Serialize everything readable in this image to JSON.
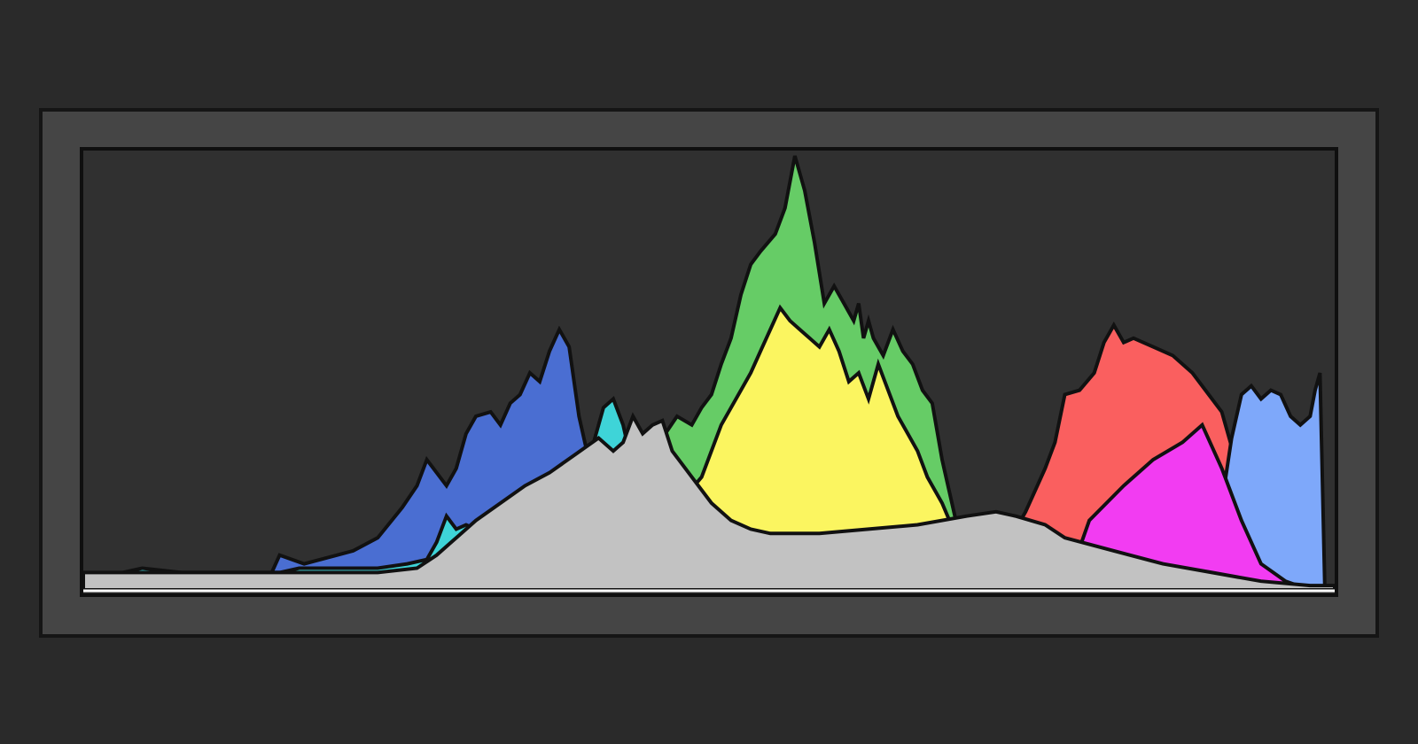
{
  "histogram": {
    "title": "",
    "colors": {
      "page_background": "#2a2a2a",
      "panel_background": "#454545",
      "plot_background": "#303030",
      "outline": "#111111"
    }
  },
  "chart_data": {
    "type": "area",
    "title": "",
    "xlabel": "",
    "ylabel": "",
    "xlim": [
      0,
      255
    ],
    "ylim": [
      0,
      100
    ],
    "grid": false,
    "legend": "none",
    "series": [
      {
        "key": "red",
        "color": "#fa5f5f",
        "x": [
          0,
          175,
          182,
          188,
          192,
          196,
          198,
          200,
          203,
          206,
          208,
          210,
          212,
          214,
          216,
          218,
          222,
          226,
          232,
          236,
          240,
          245,
          255
        ],
        "values": [
          0,
          0,
          4,
          10,
          18,
          28,
          34,
          45,
          46,
          50,
          57,
          61,
          57,
          58,
          57,
          56,
          54,
          50,
          41,
          25,
          10,
          2,
          0
        ]
      },
      {
        "key": "green",
        "color": "#66cc66",
        "x": [
          0,
          105,
          110,
          114,
          116,
          118,
          121,
          124,
          126,
          128,
          130,
          132,
          134,
          136,
          138,
          141,
          143,
          145,
          147,
          149,
          151,
          153,
          155,
          157,
          158,
          159,
          160,
          161,
          163,
          165,
          167,
          169,
          171,
          173,
          175,
          177,
          179,
          181,
          183,
          186,
          190,
          195,
          200
        ],
        "values": [
          0,
          0,
          8,
          18,
          25,
          35,
          40,
          38,
          42,
          45,
          52,
          58,
          68,
          75,
          78,
          82,
          88,
          100,
          92,
          80,
          66,
          70,
          66,
          62,
          66,
          58,
          62,
          58,
          54,
          60,
          55,
          52,
          46,
          43,
          30,
          20,
          10,
          5,
          3,
          1,
          0,
          0,
          0
        ]
      },
      {
        "key": "blue",
        "color": "#4a6ed2",
        "x": [
          0,
          30,
          35,
          38,
          40,
          45,
          55,
          60,
          65,
          68,
          70,
          72,
          74,
          76,
          78,
          80,
          83,
          85,
          87,
          89,
          91,
          93,
          95,
          97,
          99,
          101,
          103,
          105,
          107,
          109,
          111,
          113,
          114,
          116,
          118,
          120
        ],
        "values": [
          0,
          0,
          1,
          3,
          8,
          6,
          9,
          12,
          19,
          24,
          30,
          27,
          24,
          28,
          36,
          40,
          41,
          38,
          43,
          45,
          50,
          48,
          55,
          60,
          56,
          40,
          30,
          22,
          14,
          8,
          4,
          2,
          1,
          0,
          0,
          0
        ]
      },
      {
        "key": "light_blue",
        "color": "#7ea8fa",
        "x": [
          0,
          200,
          226,
          228,
          230,
          232,
          234,
          236,
          238,
          240,
          242,
          244,
          246,
          248,
          250,
          251,
          252,
          253,
          255
        ],
        "values": [
          0,
          0,
          0,
          3,
          10,
          20,
          35,
          45,
          47,
          44,
          46,
          45,
          40,
          38,
          40,
          46,
          50,
          0,
          0
        ]
      },
      {
        "key": "magenta",
        "color": "#f23cf2",
        "x": [
          0,
          72,
          74,
          76,
          78,
          80,
          82,
          84,
          90,
          100,
          101,
          102,
          104,
          106,
          108,
          110,
          112,
          200,
          205,
          212,
          218,
          224,
          228,
          232,
          236,
          240,
          245,
          250,
          255
        ],
        "values": [
          0,
          0,
          6,
          8,
          0,
          0,
          0,
          0,
          0,
          16,
          10,
          6,
          0,
          0,
          0,
          0,
          0,
          0,
          16,
          24,
          30,
          34,
          38,
          28,
          16,
          6,
          2,
          0,
          0
        ]
      },
      {
        "key": "cyan",
        "color": "#3ed4d8",
        "x": [
          0,
          2,
          8,
          12,
          20,
          34,
          40,
          44,
          48,
          52,
          56,
          60,
          66,
          70,
          72,
          74,
          76,
          78,
          80,
          82,
          84,
          86,
          88,
          90,
          92,
          94,
          96,
          98,
          100,
          102,
          104,
          106,
          108,
          110,
          112,
          114,
          116,
          118,
          120,
          122,
          124,
          126,
          128,
          132
        ],
        "values": [
          0,
          2,
          4,
          5,
          4,
          4,
          4,
          5,
          5,
          5,
          5,
          5,
          6,
          7,
          11,
          17,
          14,
          15,
          14,
          16,
          13,
          14,
          15,
          18,
          16,
          13,
          17,
          22,
          26,
          28,
          34,
          42,
          44,
          38,
          28,
          22,
          16,
          12,
          10,
          8,
          5,
          3,
          1,
          0
        ]
      },
      {
        "key": "yellow",
        "color": "#fbf560",
        "x": [
          0,
          115,
          120,
          126,
          130,
          134,
          136,
          138,
          140,
          142,
          144,
          146,
          148,
          150,
          152,
          154,
          156,
          158,
          160,
          162,
          164,
          166,
          168,
          170,
          172,
          175,
          178,
          180,
          185,
          190,
          200
        ],
        "values": [
          0,
          0,
          18,
          26,
          38,
          46,
          50,
          55,
          60,
          65,
          62,
          60,
          58,
          56,
          60,
          55,
          48,
          50,
          44,
          52,
          46,
          40,
          36,
          32,
          26,
          20,
          12,
          6,
          2,
          0,
          0
        ]
      },
      {
        "key": "gray",
        "color": "#c2c2c2",
        "x": [
          0,
          10,
          20,
          30,
          40,
          50,
          60,
          68,
          72,
          76,
          80,
          85,
          90,
          95,
          100,
          105,
          108,
          110,
          112,
          114,
          116,
          118,
          120,
          124,
          128,
          132,
          136,
          140,
          146,
          150,
          160,
          170,
          180,
          186,
          190,
          196,
          200,
          210,
          220,
          230,
          240,
          250,
          255
        ],
        "values": [
          4,
          4,
          4,
          4,
          4,
          4,
          4,
          5,
          8,
          12,
          16,
          20,
          24,
          27,
          31,
          35,
          32,
          34,
          40,
          36,
          38,
          39,
          32,
          26,
          20,
          16,
          14,
          13,
          13,
          13,
          14,
          15,
          17,
          18,
          17,
          15,
          12,
          9,
          6,
          4,
          2,
          1,
          1
        ]
      }
    ]
  }
}
